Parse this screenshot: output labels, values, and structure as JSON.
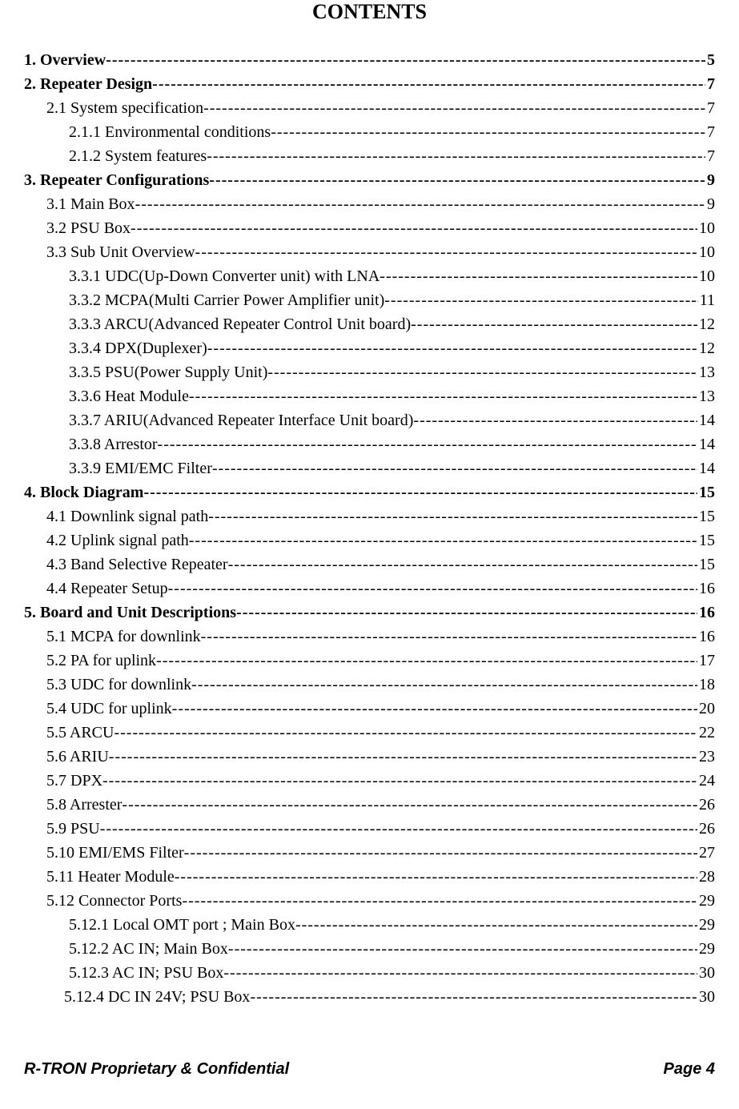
{
  "title": "CONTENTS",
  "footer": {
    "left": "R-TRON Proprietary & Confidential",
    "right": "Page 4"
  },
  "typography": {
    "body_font": "Times New Roman",
    "body_size_pt": 15,
    "title_size_pt": 19,
    "footer_font": "Arial",
    "footer_size_pt": 15,
    "text_color": "#000000",
    "background_color": "#ffffff"
  },
  "toc": [
    {
      "label": "1. Overview ",
      "page": " 5",
      "indent": 0,
      "bold": true
    },
    {
      "label": "2. Repeater Design ",
      "page": " 7",
      "indent": 0,
      "bold": true
    },
    {
      "label": "2.1 System specification ",
      "page": " 7",
      "indent": 1,
      "bold": false
    },
    {
      "label": "2.1.1 Environmental conditions ",
      "page": " 7",
      "indent": 2,
      "bold": false
    },
    {
      "label": "2.1.2 System features ",
      "page": " 7",
      "indent": 2,
      "bold": false
    },
    {
      "label": "3. Repeater Configurations ",
      "page": " 9",
      "indent": 0,
      "bold": true
    },
    {
      "label": "3.1 Main Box",
      "page": " 9",
      "indent": 1,
      "bold": false
    },
    {
      "label": "3.2 PSU Box ",
      "page": " 10",
      "indent": 1,
      "bold": false
    },
    {
      "label": "3.3 Sub Unit Overview ",
      "page": " 10",
      "indent": 1,
      "bold": false
    },
    {
      "label": "3.3.1 UDC(Up-Down Converter unit) with LNA ",
      "page": "10",
      "indent": 2,
      "bold": false
    },
    {
      "label": "3.3.2 MCPA(Multi Carrier Power Amplifier unit) ",
      "page": " 11",
      "indent": 2,
      "bold": false
    },
    {
      "label": "3.3.3 ARCU(Advanced Repeater Control Unit board) ",
      "page": " 12",
      "indent": 2,
      "bold": false
    },
    {
      "label": "3.3.4 DPX(Duplexer) ",
      "page": " 12",
      "indent": 2,
      "bold": false
    },
    {
      "label": "3.3.5 PSU(Power Supply Unit) ",
      "page": " 13",
      "indent": 2,
      "bold": false
    },
    {
      "label": "3.3.6 Heat Module ",
      "page": " 13",
      "indent": 2,
      "bold": false
    },
    {
      "label": "3.3.7 ARIU(Advanced Repeater Interface Unit board) ",
      "page": " 14",
      "indent": 2,
      "bold": false
    },
    {
      "label": "3.3.8 Arrestor ",
      "page": " 14",
      "indent": 2,
      "bold": false
    },
    {
      "label": "3.3.9 EMI/EMC Filter ",
      "page": " 14",
      "indent": 2,
      "bold": false
    },
    {
      "label": "4. Block Diagram ",
      "page": " 15",
      "indent": 0,
      "bold": true
    },
    {
      "label": "4.1 Downlink signal path ",
      "page": " 15",
      "indent": 1,
      "bold": false
    },
    {
      "label": "4.2 Uplink signal path ",
      "page": " 15",
      "indent": 1,
      "bold": false
    },
    {
      "label": "4.3 Band Selective Repeater ",
      "page": " 15",
      "indent": 1,
      "bold": false
    },
    {
      "label": "4.4 Repeater Setup ",
      "page": " 16",
      "indent": 1,
      "bold": false
    },
    {
      "label": "5. Board and Unit Descriptions ",
      "page": " 16",
      "indent": 0,
      "bold": true
    },
    {
      "label": "5.1 MCPA for downlink ",
      "page": " 16",
      "indent": 1,
      "bold": false
    },
    {
      "label": "5.2 PA for uplink ",
      "page": " 17",
      "indent": 1,
      "bold": false
    },
    {
      "label": "5.3 UDC for downlink ",
      "page": " 18",
      "indent": 1,
      "bold": false
    },
    {
      "label": "5.4 UDC for uplink ",
      "page": " 20",
      "indent": 1,
      "bold": false
    },
    {
      "label": "5.5 ARCU ",
      "page": " 22",
      "indent": 1,
      "bold": false
    },
    {
      "label": "5.6 ARIU ",
      "page": " 23",
      "indent": 1,
      "bold": false
    },
    {
      "label": "5.7 DPX ",
      "page": " 24",
      "indent": 1,
      "bold": false
    },
    {
      "label": "5.8 Arrester ",
      "page": " 26",
      "indent": 1,
      "bold": false
    },
    {
      "label": "5.9 PSU ",
      "page": " 26",
      "indent": 1,
      "bold": false
    },
    {
      "label": "5.10 EMI/EMS Filter ",
      "page": " 27",
      "indent": 1,
      "bold": false
    },
    {
      "label": "5.11 Heater Module ",
      "page": " 28",
      "indent": 1,
      "bold": false
    },
    {
      "label": "5.12 Connector Ports ",
      "page": " 29",
      "indent": 1,
      "bold": false
    },
    {
      "label": "5.12.1 Local OMT port ; Main Box ",
      "page": " 29",
      "indent": 2,
      "bold": false
    },
    {
      "label": "5.12.2 AC IN; Main Box ",
      "page": " 29",
      "indent": 2,
      "bold": false
    },
    {
      "label": "5.12.3 AC IN; PSU Box ",
      "page": " 30",
      "indent": 2,
      "bold": false
    },
    {
      "label": "5.12.4 DC IN 24V; PSU Box ",
      "page": " 30",
      "indent": "2b",
      "bold": false
    }
  ]
}
